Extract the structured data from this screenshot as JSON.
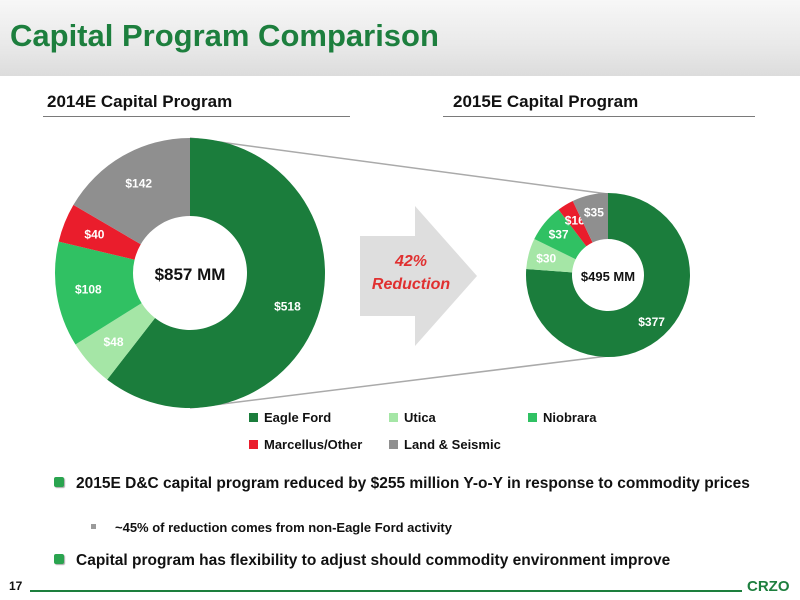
{
  "header": {
    "title": "Capital Program Comparison"
  },
  "chart_data": [
    {
      "type": "pie",
      "title": "2014E Capital Program",
      "total_label": "$857 MM",
      "categories": [
        "Eagle Ford",
        "Utica",
        "Niobrara",
        "Marcellus/Other",
        "Land & Seismic"
      ],
      "values": [
        518,
        48,
        108,
        40,
        142
      ],
      "labels": [
        "$518",
        "$48",
        "$108",
        "$40",
        "$142"
      ],
      "colors": [
        "#1b7d3c",
        "#a5e6a6",
        "#30c163",
        "#ea1d2c",
        "#8f8f8f"
      ]
    },
    {
      "type": "pie",
      "title": "2015E Capital Program",
      "total_label": "$495 MM",
      "categories": [
        "Eagle Ford",
        "Utica",
        "Niobrara",
        "Marcellus/Other",
        "Land & Seismic"
      ],
      "values": [
        377,
        30,
        37,
        16,
        35
      ],
      "labels": [
        "$377",
        "$30",
        "$37",
        "$16",
        "$35"
      ],
      "colors": [
        "#1b7d3c",
        "#a5e6a6",
        "#30c163",
        "#ea1d2c",
        "#8f8f8f"
      ]
    }
  ],
  "arrow": {
    "line1": "42%",
    "line2": "Reduction"
  },
  "legend": [
    "Eagle Ford",
    "Utica",
    "Niobrara",
    "Marcellus/Other",
    "Land & Seismic"
  ],
  "bullets": {
    "b1": "2015E D&C capital program reduced by $255 million Y-o-Y in response to commodity prices",
    "b1_sub": "~45% of reduction comes from non-Eagle Ford activity",
    "b2": "Capital program has flexibility to adjust should commodity environment improve"
  },
  "footer": {
    "page": "17",
    "brand": "CRZO"
  }
}
